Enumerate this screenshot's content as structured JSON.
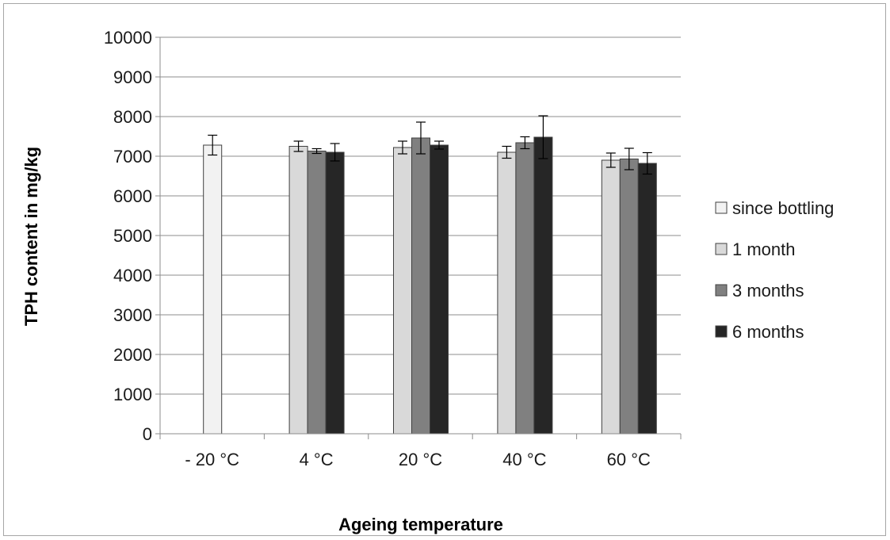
{
  "chart_data": {
    "type": "bar",
    "title": "",
    "xlabel": "Ageing temperature",
    "ylabel": "TPH content in mg/kg",
    "ylim": [
      0,
      10000
    ],
    "ytick_step": 1000,
    "yticks": [
      "0",
      "1000",
      "2000",
      "3000",
      "4000",
      "5000",
      "6000",
      "7000",
      "8000",
      "9000",
      "10000"
    ],
    "grid": true,
    "legend_position": "right",
    "categories": [
      "- 20 °C",
      "4 °C",
      "20 °C",
      "40 °C",
      "60 °C"
    ],
    "series": [
      {
        "name": "since bottling",
        "color": "#f2f2f2",
        "values": [
          7280,
          null,
          null,
          null,
          null
        ],
        "errors": [
          250,
          null,
          null,
          null,
          null
        ]
      },
      {
        "name": "1 month",
        "color": "#d9d9d9",
        "values": [
          null,
          7250,
          7220,
          7100,
          6900
        ],
        "errors": [
          null,
          130,
          160,
          150,
          180
        ]
      },
      {
        "name": "3 months",
        "color": "#808080",
        "values": [
          null,
          7130,
          7460,
          7340,
          6930
        ],
        "errors": [
          null,
          60,
          400,
          150,
          270
        ]
      },
      {
        "name": "6 months",
        "color": "#262626",
        "values": [
          null,
          7100,
          7280,
          7480,
          6820
        ],
        "errors": [
          null,
          220,
          100,
          540,
          270
        ]
      }
    ]
  }
}
